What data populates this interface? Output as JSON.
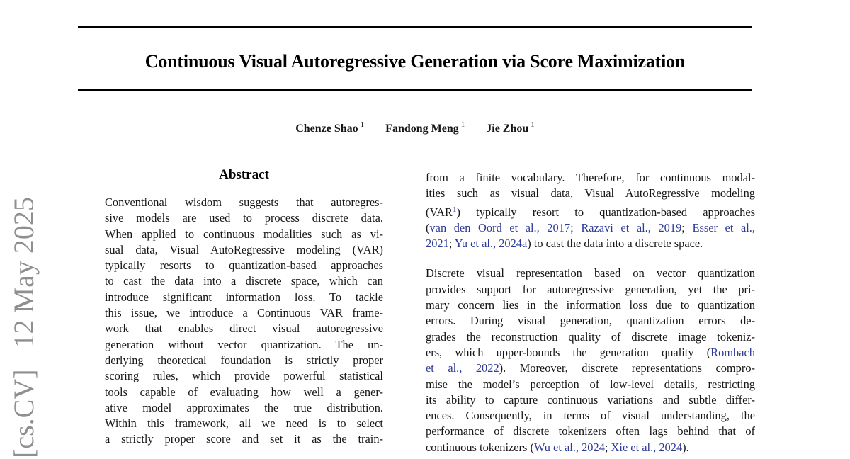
{
  "paper": {
    "title": "Continuous Visual Autoregressive Generation via Score Maximization",
    "authors": [
      {
        "name": "Chenze Shao",
        "sup": "1"
      },
      {
        "name": "Fandong Meng",
        "sup": "1"
      },
      {
        "name": "Jie Zhou",
        "sup": "1"
      }
    ],
    "watermark": "[cs.CV]   12 May 2025",
    "colors": {
      "link_blue": "#2e3a98",
      "watermark_gray": "#8f8f8f",
      "text": "#161616"
    },
    "abstract": {
      "heading": "Abstract",
      "paragraphs": [
        {
          "justify_last": true,
          "lines": [
            "Conventional wisdom suggests that autoregres-",
            "sive models are used to process discrete data.",
            "When applied to continuous modalities such as vi-",
            "sual data, Visual AutoRegressive modeling (VAR)",
            "typically resorts to quantization-based approaches",
            "to cast the data into a discrete space, which can",
            "introduce significant information loss. To tackle",
            "this issue, we introduce a Continuous VAR frame-",
            "work that enables direct visual autoregressive",
            "generation without vector quantization. The un-",
            "derlying theoretical foundation is strictly proper",
            "scoring rules, which provide powerful statistical",
            "tools capable of evaluating how well a gener-",
            "ative model approximates the true distribution.",
            "Within this framework, all we need is to select",
            "a strictly proper score and set it as the train-"
          ]
        }
      ]
    },
    "body": {
      "paragraphs": [
        {
          "justify_last": false,
          "lines": [
            "from a finite vocabulary. Therefore, for continuous modal-",
            "ities such as visual data, Visual AutoRegressive modeling",
            [
              {
                "t": "(VAR"
              },
              {
                "t": "1",
                "link": true,
                "sup": true
              },
              {
                "t": ") typically resort to quantization-based approaches"
              }
            ],
            [
              {
                "t": "("
              },
              {
                "t": "van den Oord et al., 2017",
                "link": true
              },
              {
                "t": "; "
              },
              {
                "t": "Razavi et al., 2019",
                "link": true
              },
              {
                "t": "; "
              },
              {
                "t": "Esser et al.,",
                "link": true
              }
            ],
            [
              {
                "t": "2021",
                "link": true
              },
              {
                "t": "; "
              },
              {
                "t": "Yu et al., 2024a",
                "link": true
              },
              {
                "t": ") to cast the data into a discrete space."
              }
            ]
          ]
        },
        {
          "justify_last": false,
          "lines": [
            "Discrete visual representation based on vector quantization",
            "provides support for autoregressive generation, yet the pri-",
            "mary concern lies in the information loss due to quantization",
            "errors. During visual generation, quantization errors de-",
            "grades the reconstruction quality of discrete image tokeniz-",
            [
              {
                "t": "ers, which upper-bounds the generation quality ("
              },
              {
                "t": "Rombach",
                "link": true
              }
            ],
            [
              {
                "t": "et al., 2022",
                "link": true
              },
              {
                "t": "). Moreover, discrete representations compro-"
              }
            ],
            "mise the model’s perception of low-level details, restricting",
            "its ability to capture continuous variations and subtle differ-",
            "ences. Consequently, in terms of visual understanding, the",
            "performance of discrete tokenizers often lags behind that of",
            [
              {
                "t": "continuous tokenizers ("
              },
              {
                "t": "Wu et al., 2024",
                "link": true
              },
              {
                "t": "; "
              },
              {
                "t": "Xie et al., 2024",
                "link": true
              },
              {
                "t": ")."
              }
            ]
          ]
        }
      ]
    }
  }
}
